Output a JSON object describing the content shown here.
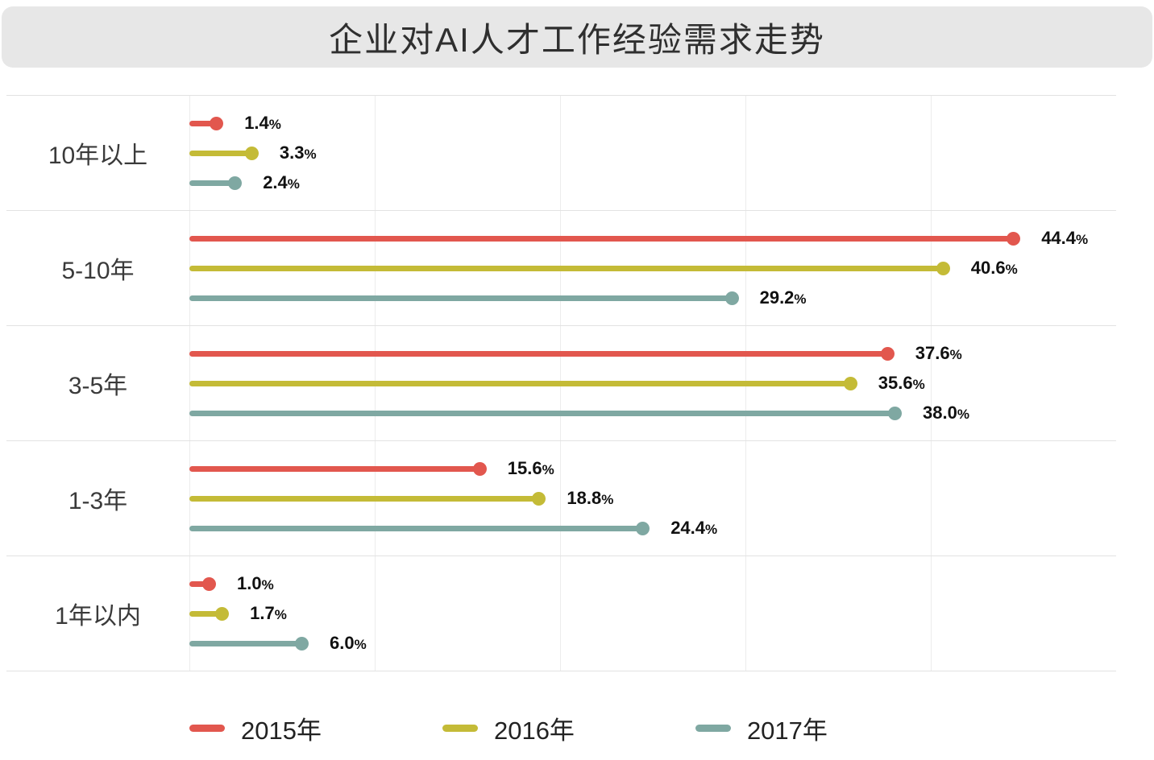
{
  "title": "企业对AI人才工作经验需求走势",
  "chart_data": {
    "type": "bar",
    "orientation": "horizontal",
    "title": "企业对AI人才工作经验需求走势",
    "categories": [
      "10年以上",
      "5-10年",
      "3-5年",
      "1-3年",
      "1年以内"
    ],
    "series": [
      {
        "name": "2015年",
        "color": "#e2574e",
        "values": [
          1.4,
          44.4,
          37.6,
          15.6,
          1.0
        ]
      },
      {
        "name": "2016年",
        "color": "#c4bb37",
        "values": [
          3.3,
          40.6,
          35.6,
          18.8,
          1.7
        ]
      },
      {
        "name": "2017年",
        "color": "#7fa8a2",
        "values": [
          2.4,
          29.2,
          38.0,
          24.4,
          6.0
        ]
      }
    ],
    "value_suffix": "%",
    "xlim": [
      0,
      50
    ],
    "grid": true,
    "legend_position": "bottom"
  }
}
